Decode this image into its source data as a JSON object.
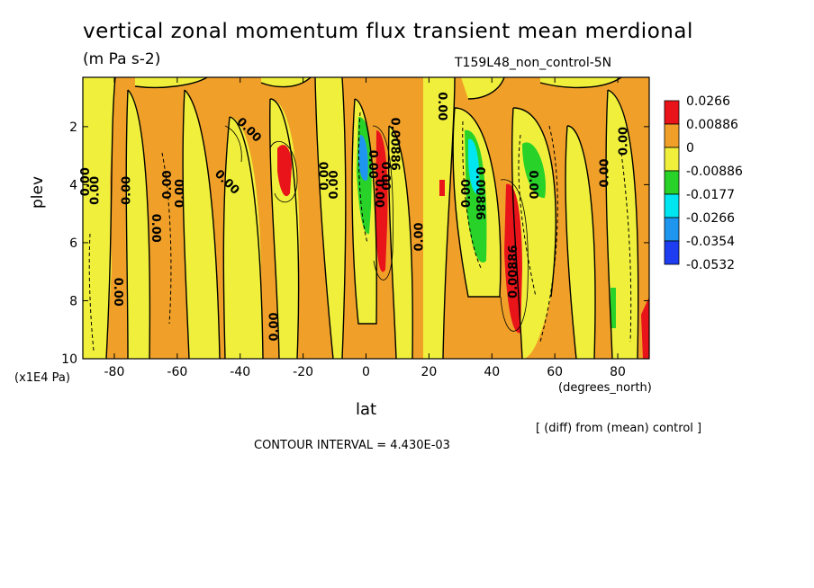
{
  "chart_data": {
    "type": "heatmap",
    "title": "vertical zonal momentum flux transient mean merdional",
    "units": "(m Pa s-2)",
    "subtitle": "T159L48_non_control-5N",
    "xlabel": "lat",
    "x_unit": "(degrees_north)",
    "ylabel": "plev",
    "y_unit": "(x1E4 Pa)",
    "xlim": [
      -90,
      90
    ],
    "ylim": [
      10,
      0.3
    ],
    "x_ticks": [
      "-80",
      "-60",
      "-40",
      "-20",
      "0",
      "20",
      "40",
      "60",
      "80"
    ],
    "x_tick_values": [
      -80,
      -60,
      -40,
      -20,
      0,
      20,
      40,
      60,
      80
    ],
    "y_ticks": [
      "2",
      "4",
      "6",
      "8",
      "10"
    ],
    "y_tick_values": [
      2,
      4,
      6,
      8,
      10
    ],
    "colorbar": {
      "labels": [
        "0.0266",
        "0.00886",
        "0",
        "-0.00886",
        "-0.0177",
        "-0.0266",
        "-0.0354",
        "-0.0532"
      ],
      "colors": [
        "#e8141a",
        "#f0a028",
        "#f0f03c",
        "#28d228",
        "#00e6f0",
        "#1e96f0",
        "#1e3cf0"
      ]
    },
    "note": "[ (diff) from (mean) control ]",
    "contour_interval": "CONTOUR INTERVAL = 4.430E-03",
    "features": [
      {
        "lat": [
          -27,
          -23
        ],
        "plev": [
          2.3,
          4.3
        ],
        "level": "red"
      },
      {
        "lat": [
          4,
          8
        ],
        "plev": [
          1.8,
          7.2
        ],
        "level": "red"
      },
      {
        "lat": [
          44,
          50
        ],
        "plev": [
          3.8,
          9.2
        ],
        "level": "red"
      },
      {
        "lat": [
          -1,
          3
        ],
        "plev": [
          1.2,
          5.2
        ],
        "level": "blue"
      },
      {
        "lat": [
          33,
          37
        ],
        "plev": [
          2.0,
          6.8
        ],
        "level": "cyan"
      },
      {
        "lat": [
          51,
          57
        ],
        "plev": [
          2.3,
          4.3
        ],
        "level": "green"
      }
    ],
    "contour_labels": [
      "0.00",
      "0.00",
      "0.00",
      "0.00",
      "0.00",
      "0.00",
      "0.00",
      "0.00",
      "0.00",
      "0.00",
      "0.00",
      "0.00",
      "0.00",
      "0.00",
      "0.00",
      "0.00886",
      "0.00886",
      "0.00886",
      "0.00",
      "0.00",
      "0.00",
      "0.00",
      "0.00",
      "0.00"
    ]
  },
  "colors": {
    "orange": "#f0a028",
    "yellow": "#f0f03c",
    "red": "#e8141a",
    "green": "#28d228",
    "cyan": "#00e6f0",
    "blue": "#1e3cf0",
    "midblue": "#1e96f0"
  }
}
